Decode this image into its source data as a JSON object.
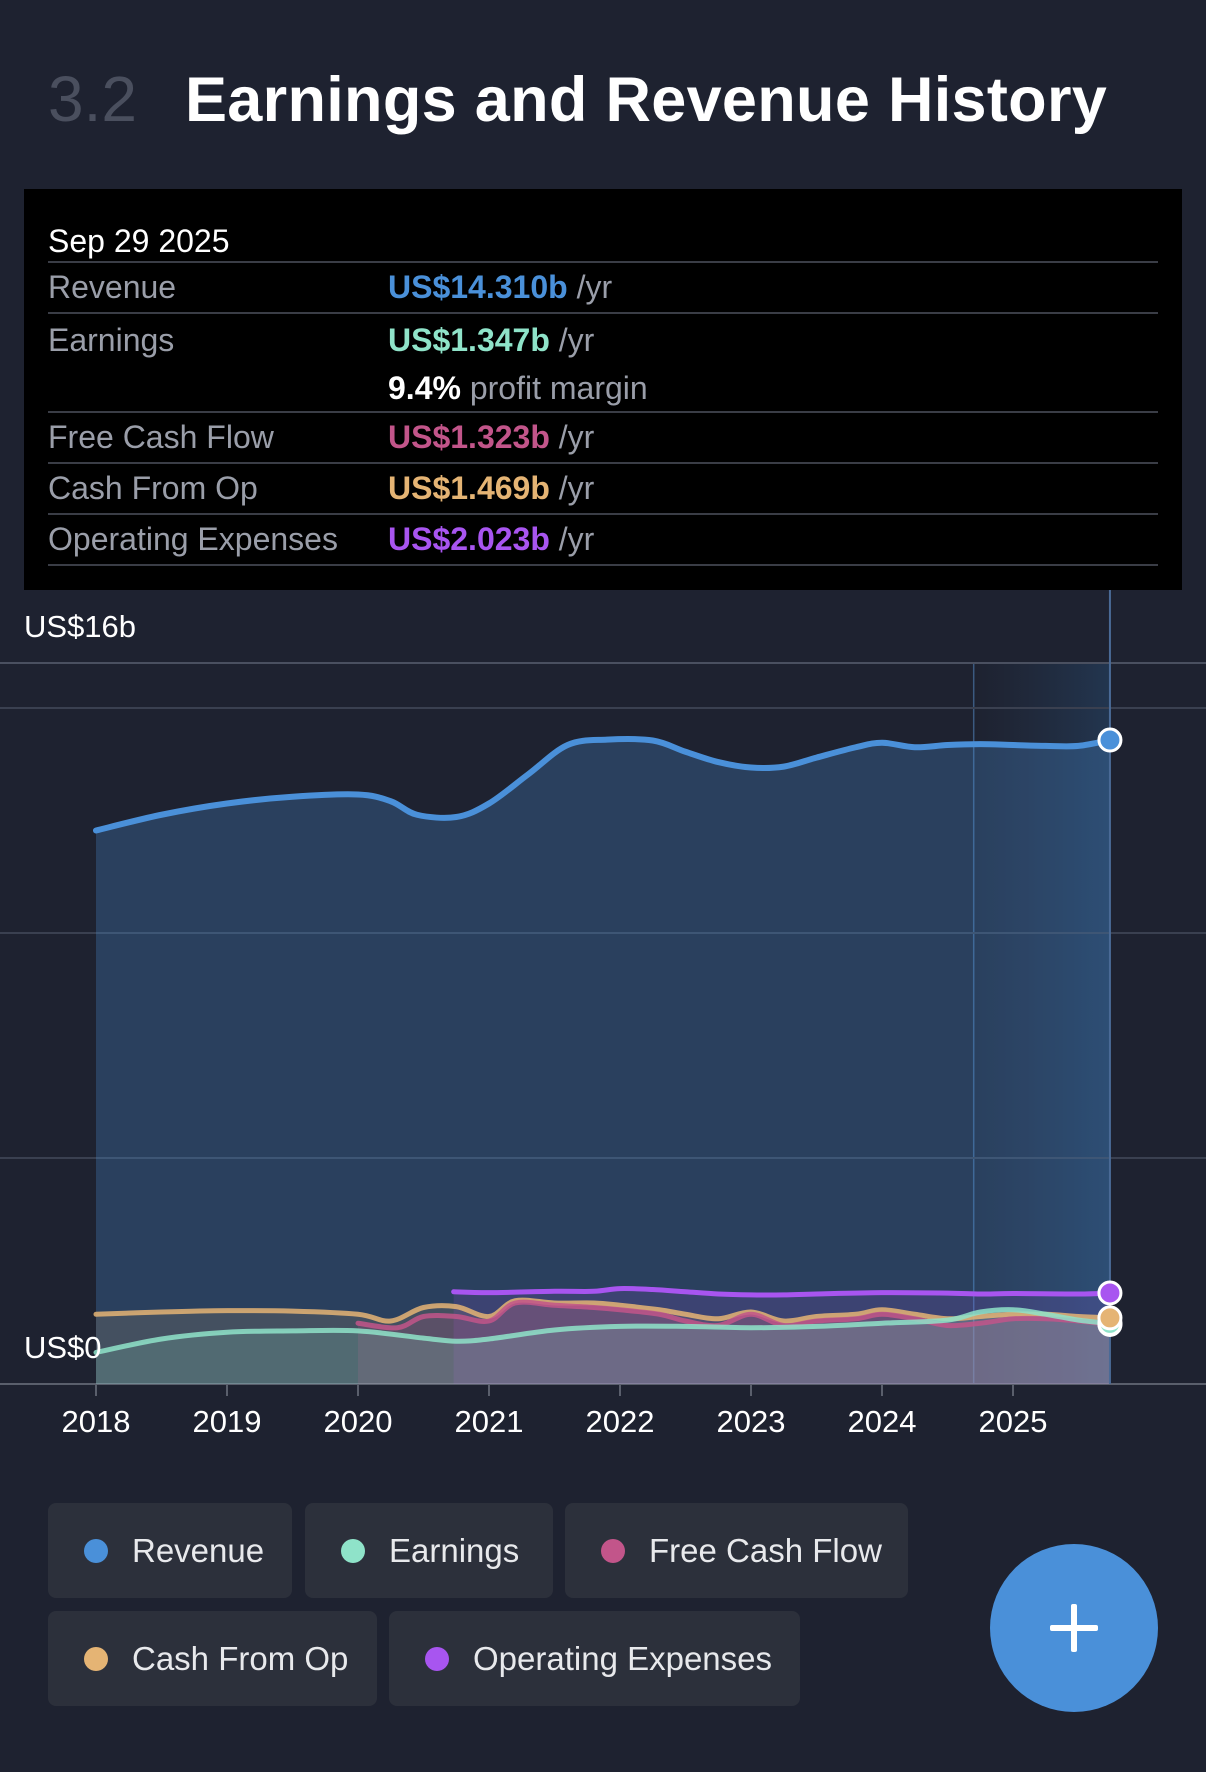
{
  "header": {
    "section_number": "3.2",
    "title": "Earnings and Revenue History"
  },
  "tooltip": {
    "date": "Sep 29 2025",
    "rows": [
      {
        "label": "Revenue",
        "value": "US$14.310b",
        "unit": "/yr",
        "color": "#4a90d9"
      },
      {
        "label": "Earnings",
        "value": "US$1.347b",
        "unit": "/yr",
        "color": "#8fe3c9",
        "margin_value": "9.4%",
        "margin_label": "profit margin"
      },
      {
        "label": "Free Cash Flow",
        "value": "US$1.323b",
        "unit": "/yr",
        "color": "#c2558a"
      },
      {
        "label": "Cash From Op",
        "value": "US$1.469b",
        "unit": "/yr",
        "color": "#e5b474"
      },
      {
        "label": "Operating Expenses",
        "value": "US$2.023b",
        "unit": "/yr",
        "color": "#a855f0"
      }
    ]
  },
  "chart_data": {
    "type": "area",
    "ylim": [
      0,
      16
    ],
    "y_tick_labels": {
      "top": "US$16b",
      "bottom": "US$0"
    },
    "x_ticks": [
      2018,
      2019,
      2020,
      2021,
      2022,
      2023,
      2024,
      2025
    ],
    "grid": true,
    "forecast_band_start": 2024.7,
    "cursor_x": 2025.74,
    "series": [
      {
        "name": "Revenue",
        "color": "#4a90d9",
        "x": [
          2018.0,
          2018.5,
          2019.0,
          2019.5,
          2020.0,
          2020.25,
          2020.45,
          2020.75,
          2021.0,
          2021.3,
          2021.6,
          2021.9,
          2022.25,
          2022.5,
          2022.75,
          2023.0,
          2023.25,
          2023.5,
          2023.8,
          2024.0,
          2024.25,
          2024.5,
          2024.75,
          2025.0,
          2025.25,
          2025.5,
          2025.74
        ],
        "values": [
          12.3,
          12.65,
          12.9,
          13.05,
          13.1,
          12.95,
          12.65,
          12.6,
          12.9,
          13.55,
          14.2,
          14.32,
          14.3,
          14.05,
          13.82,
          13.7,
          13.72,
          13.92,
          14.15,
          14.25,
          14.15,
          14.2,
          14.22,
          14.2,
          14.18,
          14.18,
          14.31
        ]
      },
      {
        "name": "Earnings",
        "color": "#8fe3c9",
        "x": [
          2018.0,
          2018.5,
          2019.0,
          2019.5,
          2020.0,
          2020.5,
          2020.75,
          2021.0,
          2021.5,
          2022.0,
          2022.5,
          2023.0,
          2023.5,
          2024.0,
          2024.5,
          2024.75,
          2025.0,
          2025.25,
          2025.5,
          2025.74
        ],
        "values": [
          0.7,
          1.0,
          1.15,
          1.18,
          1.18,
          1.02,
          0.95,
          1.0,
          1.2,
          1.28,
          1.28,
          1.25,
          1.28,
          1.35,
          1.42,
          1.6,
          1.65,
          1.55,
          1.42,
          1.347
        ]
      },
      {
        "name": "Free Cash Flow",
        "color": "#c2558a",
        "x": [
          2020.0,
          2020.3,
          2020.5,
          2020.75,
          2021.0,
          2021.2,
          2021.5,
          2021.8,
          2022.0,
          2022.3,
          2022.5,
          2022.75,
          2023.0,
          2023.25,
          2023.5,
          2023.8,
          2024.0,
          2024.25,
          2024.5,
          2024.75,
          2025.0,
          2025.25,
          2025.5,
          2025.74
        ],
        "values": [
          1.35,
          1.25,
          1.5,
          1.5,
          1.4,
          1.8,
          1.75,
          1.7,
          1.65,
          1.55,
          1.4,
          1.3,
          1.55,
          1.3,
          1.4,
          1.45,
          1.55,
          1.45,
          1.3,
          1.35,
          1.45,
          1.45,
          1.4,
          1.323
        ]
      },
      {
        "name": "Cash From Op",
        "color": "#e5b474",
        "x": [
          2018.0,
          2018.5,
          2019.0,
          2019.5,
          2020.0,
          2020.25,
          2020.5,
          2020.75,
          2021.0,
          2021.2,
          2021.5,
          2021.8,
          2022.0,
          2022.3,
          2022.5,
          2022.75,
          2023.0,
          2023.25,
          2023.5,
          2023.8,
          2024.0,
          2024.25,
          2024.5,
          2024.75,
          2025.0,
          2025.25,
          2025.5,
          2025.74
        ],
        "values": [
          1.55,
          1.6,
          1.63,
          1.62,
          1.55,
          1.4,
          1.7,
          1.72,
          1.5,
          1.85,
          1.8,
          1.8,
          1.75,
          1.65,
          1.55,
          1.45,
          1.6,
          1.4,
          1.5,
          1.55,
          1.65,
          1.55,
          1.45,
          1.5,
          1.55,
          1.55,
          1.5,
          1.469
        ]
      },
      {
        "name": "Operating Expenses",
        "color": "#a855f0",
        "x": [
          2020.73,
          2021.0,
          2021.5,
          2021.8,
          2022.0,
          2022.25,
          2022.5,
          2022.75,
          2023.0,
          2023.25,
          2023.5,
          2024.0,
          2024.5,
          2024.75,
          2025.0,
          2025.5,
          2025.74
        ],
        "values": [
          2.05,
          2.03,
          2.06,
          2.06,
          2.12,
          2.1,
          2.05,
          2.0,
          1.98,
          1.98,
          2.0,
          2.03,
          2.02,
          2.0,
          2.01,
          2.0,
          2.023
        ]
      }
    ]
  },
  "legend": [
    {
      "label": "Revenue",
      "color": "#4a90d9"
    },
    {
      "label": "Earnings",
      "color": "#8fe3c9"
    },
    {
      "label": "Free Cash Flow",
      "color": "#c2558a"
    },
    {
      "label": "Cash From Op",
      "color": "#e5b474"
    },
    {
      "label": "Operating Expenses",
      "color": "#a855f0"
    }
  ],
  "fab": {
    "icon": "plus-icon",
    "color": "#4a90d9"
  }
}
